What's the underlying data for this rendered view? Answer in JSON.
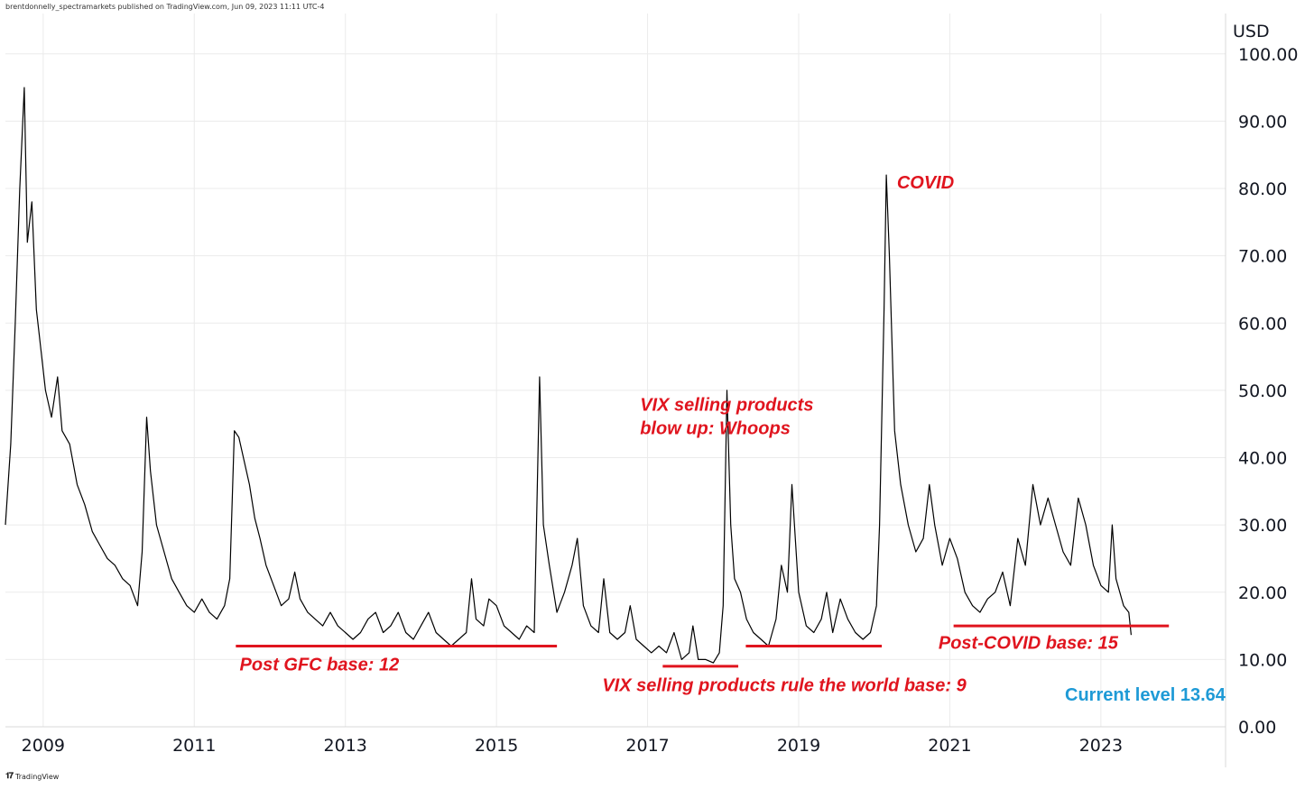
{
  "header": {
    "publisher_text": "brentdonnelly_spectramarkets published on TradingView.com, Jun 09, 2023 11:11 UTC-4"
  },
  "footer": {
    "logo_icon": "tradingview-logo-icon",
    "brand": "TradingView"
  },
  "colors": {
    "series": "#000000",
    "annotation": "#e0141e",
    "current": "#1e9ad6",
    "grid": "#ebebeb",
    "axis_text": "#131722"
  },
  "chart_data": {
    "type": "line",
    "title": "",
    "currency_label": "USD",
    "xlim": [
      2008.55,
      2024.7
    ],
    "ylim": [
      0,
      106
    ],
    "y_ticks": [
      "0.00",
      "10.00",
      "20.00",
      "30.00",
      "40.00",
      "50.00",
      "60.00",
      "70.00",
      "80.00",
      "90.00",
      "100.00"
    ],
    "x_ticks": [
      "2009",
      "2011",
      "2013",
      "2015",
      "2017",
      "2019",
      "2021",
      "2023"
    ],
    "grid": true,
    "series": [
      {
        "color": "#000000",
        "points": [
          [
            2008.55,
            30
          ],
          [
            2008.62,
            42
          ],
          [
            2008.68,
            60
          ],
          [
            2008.74,
            80
          ],
          [
            2008.8,
            95
          ],
          [
            2008.84,
            72
          ],
          [
            2008.9,
            78
          ],
          [
            2008.96,
            62
          ],
          [
            2009.0,
            58
          ],
          [
            2009.08,
            50
          ],
          [
            2009.16,
            46
          ],
          [
            2009.24,
            52
          ],
          [
            2009.3,
            44
          ],
          [
            2009.4,
            42
          ],
          [
            2009.5,
            36
          ],
          [
            2009.6,
            33
          ],
          [
            2009.7,
            29
          ],
          [
            2009.8,
            27
          ],
          [
            2009.9,
            25
          ],
          [
            2010.0,
            24
          ],
          [
            2010.1,
            22
          ],
          [
            2010.2,
            21
          ],
          [
            2010.3,
            18
          ],
          [
            2010.36,
            26
          ],
          [
            2010.42,
            46
          ],
          [
            2010.47,
            38
          ],
          [
            2010.55,
            30
          ],
          [
            2010.65,
            26
          ],
          [
            2010.75,
            22
          ],
          [
            2010.85,
            20
          ],
          [
            2010.95,
            18
          ],
          [
            2011.05,
            17
          ],
          [
            2011.15,
            19
          ],
          [
            2011.25,
            17
          ],
          [
            2011.35,
            16
          ],
          [
            2011.45,
            18
          ],
          [
            2011.52,
            22
          ],
          [
            2011.58,
            44
          ],
          [
            2011.64,
            43
          ],
          [
            2011.7,
            40
          ],
          [
            2011.78,
            36
          ],
          [
            2011.85,
            31
          ],
          [
            2011.92,
            28
          ],
          [
            2012.0,
            24
          ],
          [
            2012.1,
            21
          ],
          [
            2012.2,
            18
          ],
          [
            2012.3,
            19
          ],
          [
            2012.38,
            23
          ],
          [
            2012.45,
            19
          ],
          [
            2012.55,
            17
          ],
          [
            2012.65,
            16
          ],
          [
            2012.75,
            15
          ],
          [
            2012.85,
            17
          ],
          [
            2012.95,
            15
          ],
          [
            2013.05,
            14
          ],
          [
            2013.15,
            13
          ],
          [
            2013.25,
            14
          ],
          [
            2013.35,
            16
          ],
          [
            2013.45,
            17
          ],
          [
            2013.55,
            14
          ],
          [
            2013.65,
            15
          ],
          [
            2013.75,
            17
          ],
          [
            2013.85,
            14
          ],
          [
            2013.95,
            13
          ],
          [
            2014.05,
            15
          ],
          [
            2014.15,
            17
          ],
          [
            2014.25,
            14
          ],
          [
            2014.35,
            13
          ],
          [
            2014.45,
            12
          ],
          [
            2014.55,
            13
          ],
          [
            2014.65,
            14
          ],
          [
            2014.72,
            22
          ],
          [
            2014.78,
            16
          ],
          [
            2014.88,
            15
          ],
          [
            2014.95,
            19
          ],
          [
            2015.05,
            18
          ],
          [
            2015.15,
            15
          ],
          [
            2015.25,
            14
          ],
          [
            2015.35,
            13
          ],
          [
            2015.45,
            15
          ],
          [
            2015.55,
            14
          ],
          [
            2015.62,
            52
          ],
          [
            2015.67,
            30
          ],
          [
            2015.75,
            24
          ],
          [
            2015.85,
            17
          ],
          [
            2015.95,
            20
          ],
          [
            2016.05,
            24
          ],
          [
            2016.12,
            28
          ],
          [
            2016.2,
            18
          ],
          [
            2016.3,
            15
          ],
          [
            2016.4,
            14
          ],
          [
            2016.47,
            22
          ],
          [
            2016.55,
            14
          ],
          [
            2016.65,
            13
          ],
          [
            2016.75,
            14
          ],
          [
            2016.82,
            18
          ],
          [
            2016.9,
            13
          ],
          [
            2017.0,
            12
          ],
          [
            2017.1,
            11
          ],
          [
            2017.2,
            12
          ],
          [
            2017.3,
            11
          ],
          [
            2017.4,
            14
          ],
          [
            2017.5,
            10
          ],
          [
            2017.6,
            11
          ],
          [
            2017.65,
            15
          ],
          [
            2017.72,
            10
          ],
          [
            2017.82,
            10
          ],
          [
            2017.92,
            9.5
          ],
          [
            2018.0,
            11
          ],
          [
            2018.05,
            18
          ],
          [
            2018.1,
            50
          ],
          [
            2018.15,
            30
          ],
          [
            2018.2,
            22
          ],
          [
            2018.28,
            20
          ],
          [
            2018.36,
            16
          ],
          [
            2018.45,
            14
          ],
          [
            2018.55,
            13
          ],
          [
            2018.65,
            12
          ],
          [
            2018.75,
            16
          ],
          [
            2018.82,
            24
          ],
          [
            2018.9,
            20
          ],
          [
            2018.96,
            36
          ],
          [
            2019.05,
            20
          ],
          [
            2019.15,
            15
          ],
          [
            2019.25,
            14
          ],
          [
            2019.35,
            16
          ],
          [
            2019.42,
            20
          ],
          [
            2019.5,
            14
          ],
          [
            2019.6,
            19
          ],
          [
            2019.7,
            16
          ],
          [
            2019.8,
            14
          ],
          [
            2019.9,
            13
          ],
          [
            2020.0,
            14
          ],
          [
            2020.08,
            18
          ],
          [
            2020.12,
            30
          ],
          [
            2020.18,
            62
          ],
          [
            2020.21,
            82
          ],
          [
            2020.25,
            70
          ],
          [
            2020.32,
            44
          ],
          [
            2020.4,
            36
          ],
          [
            2020.5,
            30
          ],
          [
            2020.6,
            26
          ],
          [
            2020.7,
            28
          ],
          [
            2020.78,
            36
          ],
          [
            2020.85,
            30
          ],
          [
            2020.95,
            24
          ],
          [
            2021.05,
            28
          ],
          [
            2021.15,
            25
          ],
          [
            2021.25,
            20
          ],
          [
            2021.35,
            18
          ],
          [
            2021.45,
            17
          ],
          [
            2021.55,
            19
          ],
          [
            2021.65,
            20
          ],
          [
            2021.75,
            23
          ],
          [
            2021.85,
            18
          ],
          [
            2021.95,
            28
          ],
          [
            2022.05,
            24
          ],
          [
            2022.15,
            36
          ],
          [
            2022.25,
            30
          ],
          [
            2022.35,
            34
          ],
          [
            2022.45,
            30
          ],
          [
            2022.55,
            26
          ],
          [
            2022.65,
            24
          ],
          [
            2022.75,
            34
          ],
          [
            2022.85,
            30
          ],
          [
            2022.95,
            24
          ],
          [
            2023.05,
            21
          ],
          [
            2023.15,
            20
          ],
          [
            2023.2,
            30
          ],
          [
            2023.25,
            22
          ],
          [
            2023.35,
            18
          ],
          [
            2023.42,
            17
          ],
          [
            2023.45,
            13.64
          ]
        ]
      }
    ],
    "annotations": [
      {
        "text": "COVID",
        "x": 2020.35,
        "y": 80
      },
      {
        "text": "VIX selling products",
        "x": 2016.95,
        "y": 47
      },
      {
        "text": "blow up: Whoops",
        "x": 2016.95,
        "y": 43.5
      },
      {
        "text": "Post GFC base: 12",
        "x": 2011.65,
        "y": 8.4
      },
      {
        "text": "VIX selling products rule the world base: 9",
        "x": 2016.45,
        "y": 5.3
      },
      {
        "text": "Post-COVID base: 15",
        "x": 2020.9,
        "y": 11.6
      }
    ],
    "levels": [
      {
        "x1": 2011.6,
        "x2": 2015.85,
        "y": 12
      },
      {
        "x1": 2017.25,
        "x2": 2018.25,
        "y": 9
      },
      {
        "x1": 2018.35,
        "x2": 2020.15,
        "y": 12
      },
      {
        "x1": 2021.1,
        "x2": 2023.95,
        "y": 15
      }
    ],
    "current_level": {
      "label": "Current level 13.64",
      "value": 13.64
    }
  }
}
